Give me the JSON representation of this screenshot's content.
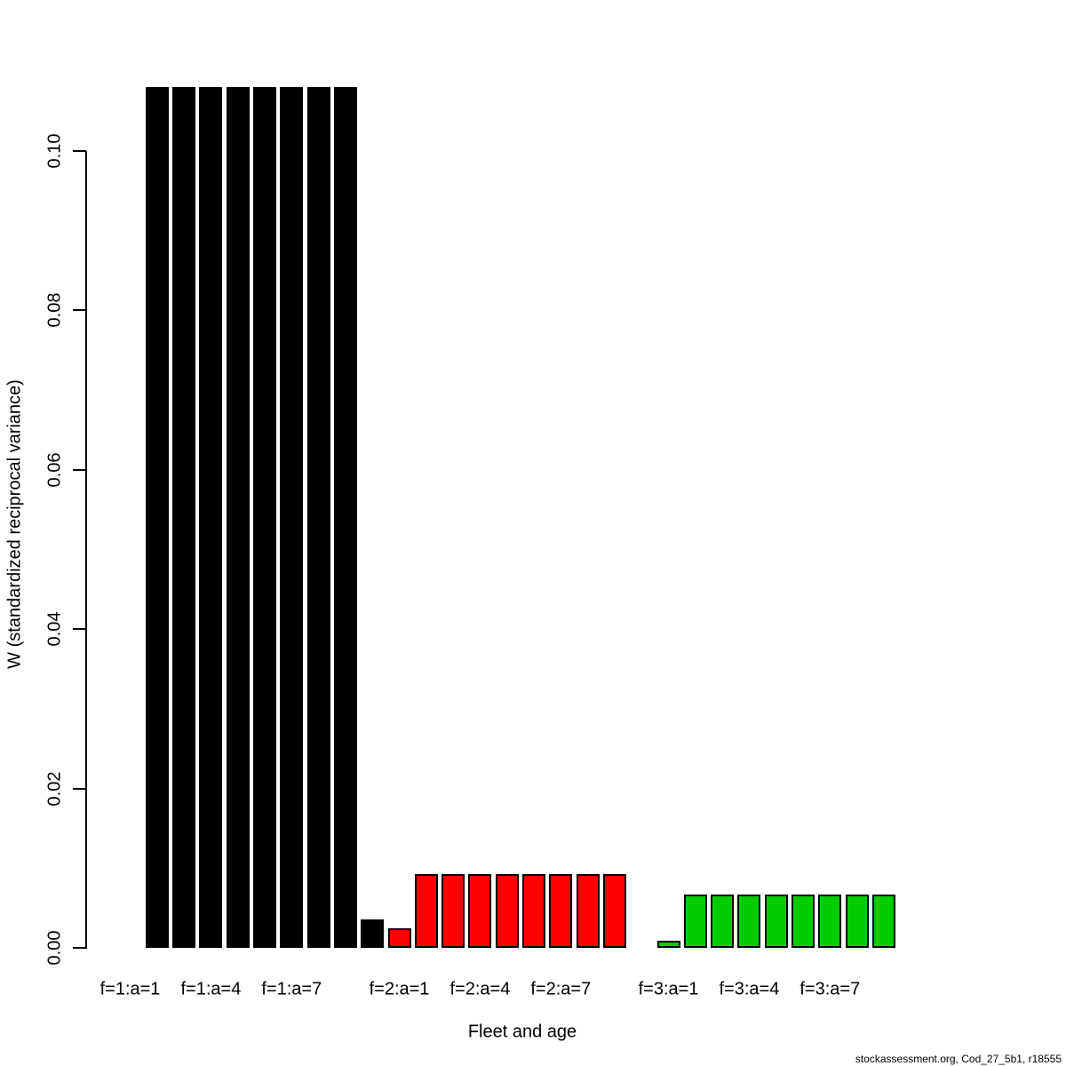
{
  "chart_data": {
    "type": "bar",
    "title": "",
    "xlabel": "Fleet and age",
    "ylabel": "W (standardized reciprocal variance)",
    "ylim": [
      0,
      0.112
    ],
    "grid": false,
    "legend": "none",
    "yticks": [
      {
        "value": 0.0,
        "label": "0.00"
      },
      {
        "value": 0.02,
        "label": "0.02"
      },
      {
        "value": 0.04,
        "label": "0.04"
      },
      {
        "value": 0.06,
        "label": "0.06"
      },
      {
        "value": 0.08,
        "label": "0.08"
      },
      {
        "value": 0.1,
        "label": "0.10"
      }
    ],
    "ages": [
      1,
      2,
      3,
      4,
      5,
      6,
      7,
      8,
      9,
      10
    ],
    "series": [
      {
        "name": "fleet 1",
        "color": "#000000",
        "values": [
          0,
          0.108,
          0.108,
          0.108,
          0.108,
          0.108,
          0.108,
          0.108,
          0.108,
          0.0036
        ]
      },
      {
        "name": "fleet 2",
        "color": "#FF0000",
        "values": [
          0.0025,
          0.0093,
          0.0093,
          0.0093,
          0.0093,
          0.0093,
          0.0093,
          0.0093,
          0.0093,
          0
        ]
      },
      {
        "name": "fleet 3",
        "color": "#00CD00",
        "values": [
          0.0009,
          0.0067,
          0.0067,
          0.0067,
          0.0067,
          0.0067,
          0.0067,
          0.0067,
          0.0067,
          0
        ]
      }
    ],
    "x_tick_labels": [
      {
        "fleet": 1,
        "age": 1,
        "label": "f=1:a=1"
      },
      {
        "fleet": 1,
        "age": 4,
        "label": "f=1:a=4"
      },
      {
        "fleet": 1,
        "age": 7,
        "label": "f=1:a=7"
      },
      {
        "fleet": 2,
        "age": 1,
        "label": "f=2:a=1"
      },
      {
        "fleet": 2,
        "age": 4,
        "label": "f=2:a=4"
      },
      {
        "fleet": 2,
        "age": 7,
        "label": "f=2:a=7"
      },
      {
        "fleet": 3,
        "age": 1,
        "label": "f=3:a=1"
      },
      {
        "fleet": 3,
        "age": 4,
        "label": "f=3:a=4"
      },
      {
        "fleet": 3,
        "age": 7,
        "label": "f=3:a=7"
      }
    ]
  },
  "footer": {
    "text": "stockassessment.org, Cod_27_5b1, r18555"
  }
}
